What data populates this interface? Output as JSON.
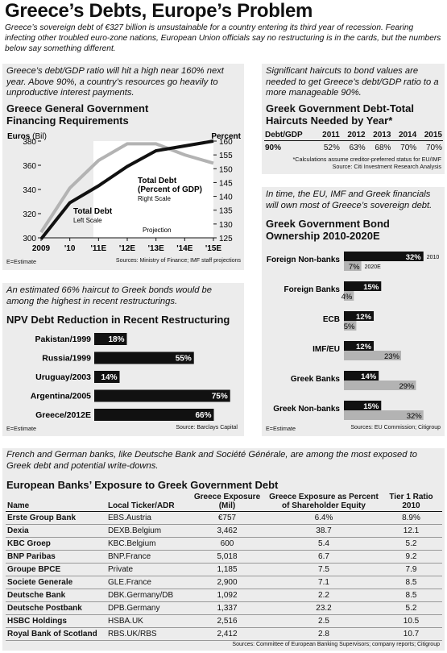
{
  "header": {
    "title": "Greece’s Debts, Europe’s Problem",
    "subtitle": "Greece’s sovereign debt of €327 billion is unsustainable for a country entering its third year of recession. Fearing infecting other troubled euro-zone nations, European Union  officials say no restructuring is in the cards, but the numbers below say something different."
  },
  "colors": {
    "black": "#111111",
    "gray": "#b3b3b3",
    "panel": "#ececec"
  },
  "panel1": {
    "intro": "Greece’s debt/GDP ratio will hit a high near 160% next year. Above 90%, a country’s resources go heavily to unproductive interest payments.",
    "title": "Greece General Government Financing Requirements",
    "left_axis_label": "Euros",
    "left_axis_unit": "(Bil)",
    "right_axis_label": "Percent",
    "series_total_debt": "Total Debt",
    "series_total_debt_scale": "Left Scale",
    "series_pct": "Total Debt (Percent of GDP)",
    "series_pct_scale": "Right Scale",
    "projection": "Projection",
    "estimate_note": "E=Estimate",
    "source": "Sources: Ministry of Finance; IMF staff projections"
  },
  "panel2": {
    "intro": "Significant haircuts to bond values are needed to get Greece’s debt/GDP ratio to a more manageable 90%.",
    "title": "Greek Government Debt-Total Haircuts Needed by Year*",
    "headers": [
      "Debt/GDP",
      "2011",
      "2012",
      "2013",
      "2014",
      "2015"
    ],
    "row": [
      "90%",
      "52%",
      "63%",
      "68%",
      "70%",
      "70%"
    ],
    "note": "*Calculations assume creditor-preferred status for EU/IMF",
    "source": "Source: Citi Investment Research Analysis"
  },
  "panel3": {
    "intro": "An estimated 66% haircut to Greek bonds would be among the highest in recent restructurings.",
    "title": "NPV Debt Reduction in Recent Restructuring",
    "estimate_note": "E=Estimate",
    "source": "Source: Barclays Capital"
  },
  "panel4": {
    "intro": "In time, the EU, IMF and Greek financials will own most of Greece’s sovereign debt.",
    "title": "Greek Government Bond Ownership 2010-2020E",
    "estimate_note": "E=Estimate",
    "source": "Sources: EU Commission; Citigroup"
  },
  "panel5": {
    "intro": "French and German banks, like Deutsche Bank and Société Générale, are among the most exposed to Greek debt and potential write-downs.",
    "title": "European Banks’ Exposure to Greek Government Debt",
    "headers": [
      "Name",
      "Local Ticker/ADR",
      "Greece Exposure (Mil)",
      "Greece Exposure as Percent of Shareholder Equity",
      "Tier 1 Ratio 2010"
    ],
    "rows": [
      [
        "Erste Group Bank",
        "EBS.Austria",
        "€757",
        "6.4%",
        "8.9%"
      ],
      [
        "Dexia",
        "DEXB.Belgium",
        "3,462",
        "38.7",
        "12.1"
      ],
      [
        "KBC Groep",
        "KBC.Belgium",
        "600",
        "5.4",
        "5.2"
      ],
      [
        "BNP Paribas",
        "BNP.France",
        "5,018",
        "6.7",
        "9.2"
      ],
      [
        "Groupe BPCE",
        "Private",
        "1,185",
        "7.5",
        "7.9"
      ],
      [
        "Societe Generale",
        "GLE.France",
        "2,900",
        "7.1",
        "8.5"
      ],
      [
        "Deutsche Bank",
        "DBK.Germany/DB",
        "1,092",
        "2.2",
        "8.5"
      ],
      [
        "Deutsche Postbank",
        "DPB.Germany",
        "1,337",
        "23.2",
        "5.2"
      ],
      [
        "HSBC Holdings",
        "HSBA.UK",
        "2,516",
        "2.5",
        "10.5"
      ],
      [
        "Royal Bank of Scotland",
        "RBS.UK/RBS",
        "2,412",
        "2.8",
        "10.7"
      ]
    ],
    "source": "Sources: Committee of European Banking Supervisors; company reports; Citigroup"
  },
  "chart_data": [
    {
      "type": "line",
      "title": "Greece General Government Financing Requirements",
      "x": [
        "2009",
        "'10",
        "'11E",
        "'12E",
        "'13E",
        "'14E",
        "'15E"
      ],
      "series": [
        {
          "name": "Total Debt",
          "axis": "left",
          "values": [
            299,
            329,
            343,
            359,
            372,
            376,
            380
          ]
        },
        {
          "name": "Total Debt (Percent of GDP)",
          "axis": "right",
          "values": [
            127,
            143,
            153,
            159,
            159,
            155,
            152
          ]
        }
      ],
      "left_ylim": [
        300,
        380
      ],
      "left_ticks": [
        300,
        320,
        340,
        360,
        380
      ],
      "right_ylim": [
        125,
        160
      ],
      "right_ticks": [
        125,
        130,
        135,
        140,
        145,
        150,
        155,
        160
      ],
      "xlabel": "",
      "ylabel": "Euros (Bil)",
      "y2label": "Percent"
    },
    {
      "type": "bar",
      "orientation": "horizontal",
      "title": "NPV Debt Reduction in Recent Restructuring",
      "categories": [
        "Pakistan/1999",
        "Russia/1999",
        "Uruguay/2003",
        "Argentina/2005",
        "Greece/2012E"
      ],
      "values": [
        18,
        55,
        14,
        75,
        66
      ],
      "xlim": [
        0,
        80
      ]
    },
    {
      "type": "bar",
      "orientation": "horizontal",
      "title": "Greek Government Bond Ownership 2010-2020E",
      "categories": [
        "Foreign Non-banks",
        "Foreign Banks",
        "ECB",
        "IMF/EU",
        "Greek Banks",
        "Greek Non-banks"
      ],
      "series": [
        {
          "name": "2010",
          "values": [
            32,
            15,
            12,
            12,
            14,
            15
          ]
        },
        {
          "name": "2020E",
          "values": [
            7,
            4,
            5,
            23,
            29,
            32
          ]
        }
      ],
      "xlim": [
        0,
        35
      ]
    }
  ]
}
